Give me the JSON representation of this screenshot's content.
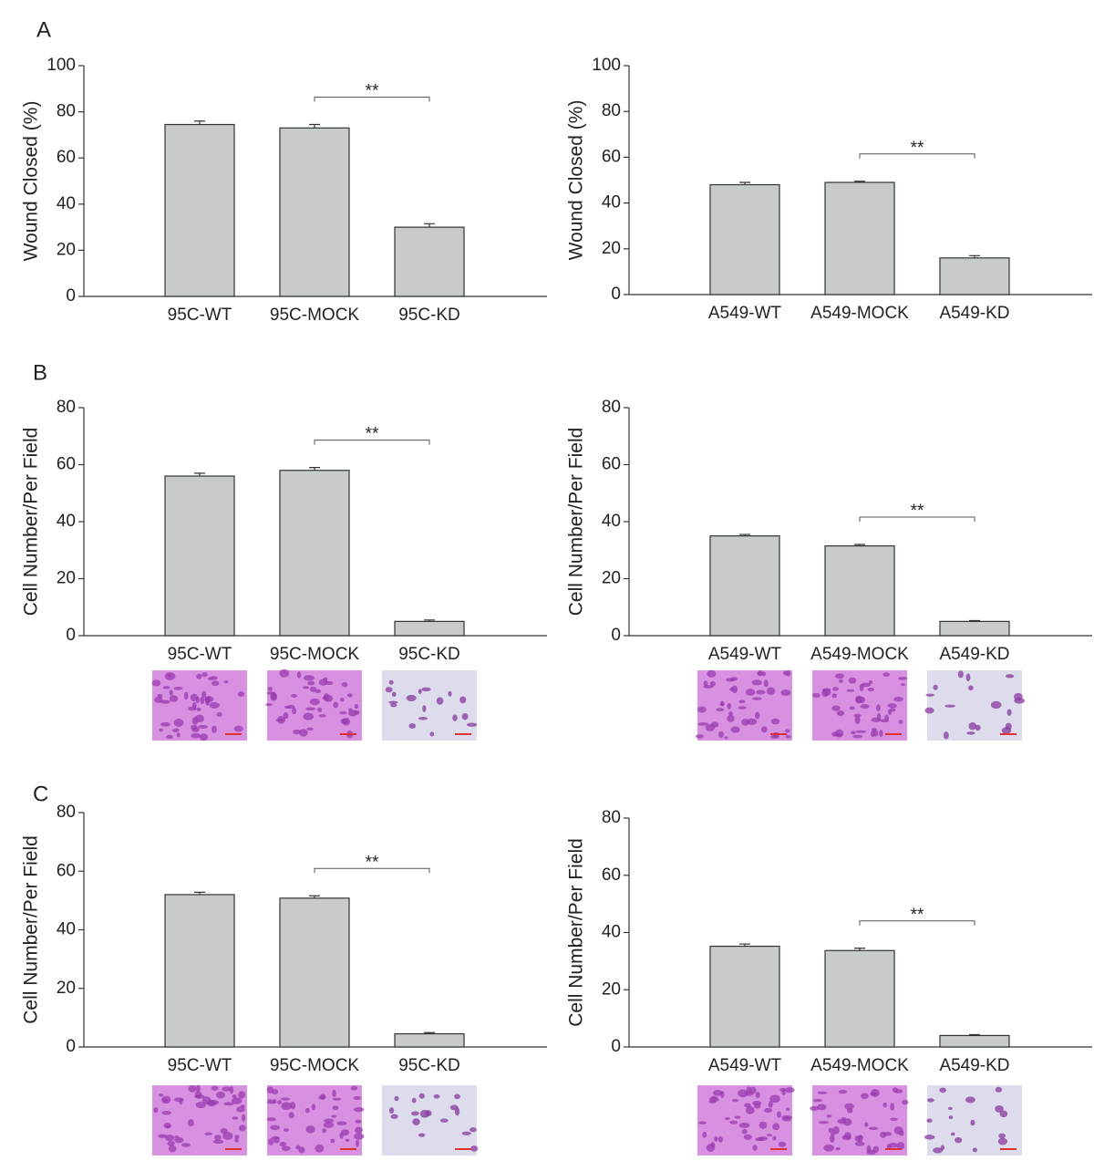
{
  "panel_labels": [
    "A",
    "B",
    "C"
  ],
  "chart_data": [
    {
      "type": "bar",
      "y_label": "Wound Closed (%)",
      "categories": [
        "95C-WT",
        "95C-MOCK",
        "95C-KD"
      ],
      "values": [
        74.5,
        73,
        30
      ],
      "errors": [
        1.5,
        1.5,
        1.5
      ],
      "color": "#c8ccc9",
      "ylim": [
        0,
        100
      ],
      "yticks": [
        0,
        20,
        40,
        60,
        80,
        100
      ],
      "significance": "**"
    },
    {
      "type": "bar",
      "y_label": "Wound Closed (%)",
      "categories": [
        "A549-WT",
        "A549-MOCK",
        "A549-KD"
      ],
      "values": [
        48,
        49,
        16
      ],
      "errors": [
        1,
        0.5,
        1
      ],
      "color": "#c8ccc9",
      "ylim": [
        0,
        100
      ],
      "yticks": [
        0,
        20,
        40,
        60,
        80,
        100
      ],
      "significance": "**"
    },
    {
      "type": "bar",
      "y_label": "Cell Number/Per Field",
      "categories": [
        "95C-WT",
        "95C-MOCK",
        "95C-KD"
      ],
      "values": [
        56,
        58,
        5
      ],
      "errors": [
        1,
        1,
        0.5
      ],
      "color": "#c8ccc9",
      "ylim": [
        0,
        80
      ],
      "yticks": [
        0,
        20,
        40,
        60,
        80
      ],
      "significance": "**"
    },
    {
      "type": "bar",
      "y_label": "Cell Number/Per Field",
      "categories": [
        "A549-WT",
        "A549-MOCK",
        "A549-KD"
      ],
      "values": [
        35,
        31.5,
        5
      ],
      "errors": [
        0.5,
        0.5,
        0.3
      ],
      "color": "#c8ccc9",
      "ylim": [
        0,
        80
      ],
      "yticks": [
        0,
        20,
        40,
        60,
        80
      ],
      "significance": "**"
    },
    {
      "type": "bar",
      "y_label": "Cell Number/Per Field",
      "categories": [
        "95C-WT",
        "95C-MOCK",
        "95C-KD"
      ],
      "values": [
        52,
        50.8,
        4.5
      ],
      "errors": [
        0.8,
        0.8,
        0.4
      ],
      "color": "#c8ccc9",
      "ylim": [
        0,
        80
      ],
      "yticks": [
        0,
        20,
        40,
        60,
        80
      ],
      "significance": "**"
    },
    {
      "type": "bar",
      "y_label": "Cell Number/Per Field",
      "categories": [
        "A549-WT",
        "A549-MOCK",
        "A549-KD"
      ],
      "values": [
        35.2,
        33.7,
        4
      ],
      "errors": [
        0.8,
        0.8,
        0.3
      ],
      "color": "#c8ccc9",
      "ylim": [
        0,
        80
      ],
      "yticks": [
        0,
        20,
        40,
        60,
        80
      ],
      "significance": "**"
    }
  ]
}
